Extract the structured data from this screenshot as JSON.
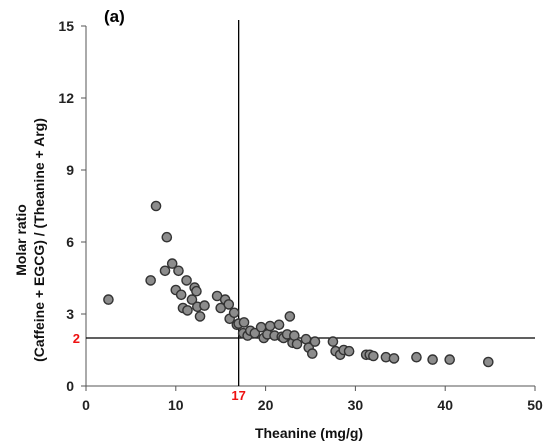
{
  "chart_data": {
    "type": "scatter",
    "panel_label": "(a)",
    "title": "",
    "xlabel": "Theanine (mg/g)",
    "ylabel_line1": "Molar ratio",
    "ylabel_line2": "(Caffeine + EGCG) / (Theanine + Arg)",
    "xlim": [
      0,
      50
    ],
    "ylim": [
      0,
      15
    ],
    "xticks": [
      "0",
      "10",
      "20",
      "30",
      "40",
      "50"
    ],
    "yticks": [
      "0",
      "3",
      "6",
      "9",
      "12",
      "15"
    ],
    "grid": false,
    "marker_color": "#8c8c8c",
    "marker_edge_color": "#333333",
    "reference_lines": {
      "x": 17,
      "x_label": "17",
      "y": 2,
      "y_label": "2",
      "label_color": "#ee1111"
    },
    "points": [
      [
        2.5,
        3.6
      ],
      [
        7.2,
        4.4
      ],
      [
        7.8,
        7.5
      ],
      [
        8.8,
        4.8
      ],
      [
        9.0,
        6.2
      ],
      [
        9.6,
        5.1
      ],
      [
        10.0,
        4.0
      ],
      [
        10.3,
        4.8
      ],
      [
        10.6,
        3.8
      ],
      [
        10.8,
        3.25
      ],
      [
        11.2,
        4.4
      ],
      [
        11.3,
        3.15
      ],
      [
        11.8,
        3.6
      ],
      [
        12.1,
        4.1
      ],
      [
        12.3,
        3.95
      ],
      [
        12.4,
        3.3
      ],
      [
        12.7,
        2.9
      ],
      [
        13.2,
        3.35
      ],
      [
        14.6,
        3.75
      ],
      [
        15.0,
        3.25
      ],
      [
        15.5,
        3.6
      ],
      [
        15.9,
        3.4
      ],
      [
        16.0,
        2.8
      ],
      [
        16.5,
        3.05
      ],
      [
        16.8,
        2.55
      ],
      [
        17.0,
        2.6
      ],
      [
        17.5,
        2.2
      ],
      [
        17.6,
        2.65
      ],
      [
        18.0,
        2.1
      ],
      [
        18.3,
        2.3
      ],
      [
        18.8,
        2.2
      ],
      [
        19.5,
        2.45
      ],
      [
        19.8,
        2.0
      ],
      [
        20.2,
        2.15
      ],
      [
        20.5,
        2.5
      ],
      [
        21.0,
        2.1
      ],
      [
        21.5,
        2.55
      ],
      [
        21.8,
        2.05
      ],
      [
        22.0,
        2.0
      ],
      [
        22.4,
        2.15
      ],
      [
        22.7,
        2.9
      ],
      [
        23.0,
        1.8
      ],
      [
        23.2,
        2.1
      ],
      [
        23.5,
        1.75
      ],
      [
        24.5,
        1.95
      ],
      [
        24.8,
        1.6
      ],
      [
        25.2,
        1.35
      ],
      [
        25.5,
        1.85
      ],
      [
        27.5,
        1.85
      ],
      [
        27.8,
        1.45
      ],
      [
        28.3,
        1.3
      ],
      [
        28.7,
        1.5
      ],
      [
        29.3,
        1.45
      ],
      [
        31.2,
        1.3
      ],
      [
        31.6,
        1.3
      ],
      [
        32.0,
        1.25
      ],
      [
        33.4,
        1.2
      ],
      [
        34.3,
        1.15
      ],
      [
        36.8,
        1.2
      ],
      [
        38.6,
        1.1
      ],
      [
        40.5,
        1.1
      ],
      [
        44.8,
        1.0
      ]
    ]
  }
}
